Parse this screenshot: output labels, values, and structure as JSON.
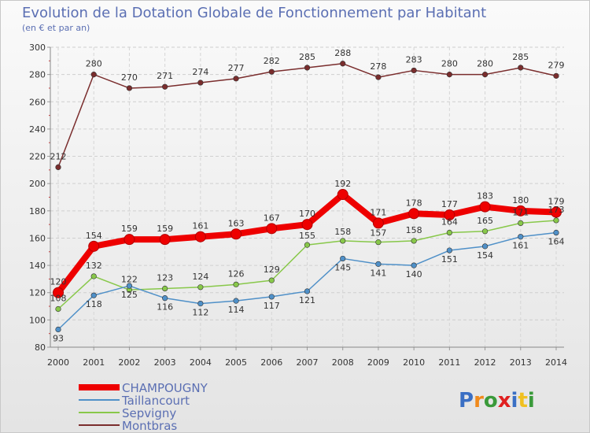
{
  "chart_data": {
    "type": "line",
    "title": "Evolution de la Dotation Globale de Fonctionnement par Habitant",
    "subtitle": "(en € et par an)",
    "xlabel": "",
    "ylabel": "",
    "x": [
      "2000",
      "2001",
      "2002",
      "2003",
      "2004",
      "2005",
      "2006",
      "2007",
      "2008",
      "2009",
      "2010",
      "2011",
      "2012",
      "2013",
      "2014"
    ],
    "ylim": [
      80,
      300
    ],
    "yticks": [
      "80",
      "100",
      "120",
      "140",
      "160",
      "180",
      "200",
      "220",
      "240",
      "260",
      "280",
      "300"
    ],
    "grid": true,
    "series": [
      {
        "name": "Montbras",
        "color": "#7a2d2d",
        "values": [
          212,
          280,
          270,
          271,
          274,
          277,
          282,
          285,
          288,
          278,
          283,
          280,
          280,
          285,
          279
        ]
      },
      {
        "name": "Sepvigny",
        "color": "#88c84a",
        "values": [
          108,
          132,
          122,
          123,
          124,
          126,
          129,
          155,
          158,
          157,
          158,
          164,
          165,
          171,
          173
        ]
      },
      {
        "name": "Taillancourt",
        "color": "#4f90c8",
        "values": [
          93,
          118,
          125,
          116,
          112,
          114,
          117,
          121,
          145,
          141,
          140,
          151,
          154,
          161,
          164
        ]
      },
      {
        "name": "CHAMPOUGNY",
        "color": "#ee0000",
        "values": [
          120,
          154,
          159,
          159,
          161,
          163,
          167,
          170,
          192,
          171,
          178,
          177,
          183,
          180,
          179
        ]
      }
    ],
    "legend": {
      "position": "bottom-left",
      "entries": [
        "CHAMPOUGNY",
        "Taillancourt",
        "Sepvigny",
        "Montbras"
      ]
    }
  },
  "brand": {
    "letters": [
      "P",
      "r",
      "o",
      "x",
      "i",
      "t",
      "i"
    ]
  }
}
